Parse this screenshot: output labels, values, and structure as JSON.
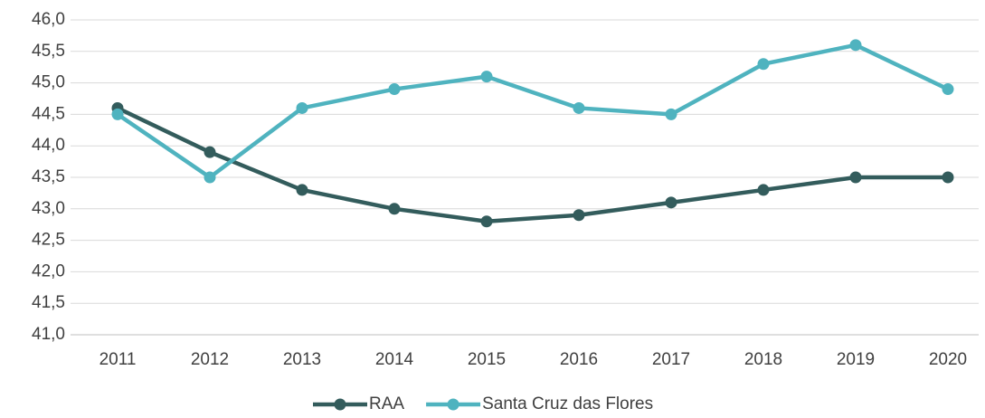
{
  "chart_data": {
    "type": "line",
    "categories": [
      "2011",
      "2012",
      "2013",
      "2014",
      "2015",
      "2016",
      "2017",
      "2018",
      "2019",
      "2020"
    ],
    "series": [
      {
        "name": "RAA",
        "color": "#335c5c",
        "values": [
          44.6,
          43.9,
          43.3,
          43.0,
          42.8,
          42.9,
          43.1,
          43.3,
          43.5,
          43.5
        ]
      },
      {
        "name": "Santa Cruz das Flores",
        "color": "#4fb3bf",
        "values": [
          44.5,
          43.5,
          44.6,
          44.9,
          45.1,
          44.6,
          44.5,
          45.3,
          45.6,
          44.9
        ]
      }
    ],
    "ylim": [
      41,
      46
    ],
    "yticks": [
      {
        "value": 41,
        "label": "41,0"
      },
      {
        "value": 41.5,
        "label": "41,5"
      },
      {
        "value": 42,
        "label": "42,0"
      },
      {
        "value": 42.5,
        "label": "42,5"
      },
      {
        "value": 43,
        "label": "43,0"
      },
      {
        "value": 43.5,
        "label": "43,5"
      },
      {
        "value": 44,
        "label": "44,0"
      },
      {
        "value": 44.5,
        "label": "44,5"
      },
      {
        "value": 45,
        "label": "45,0"
      },
      {
        "value": 45.5,
        "label": "45,5"
      },
      {
        "value": 46,
        "label": "46,0"
      }
    ],
    "grid": true,
    "legend": "bottom"
  }
}
